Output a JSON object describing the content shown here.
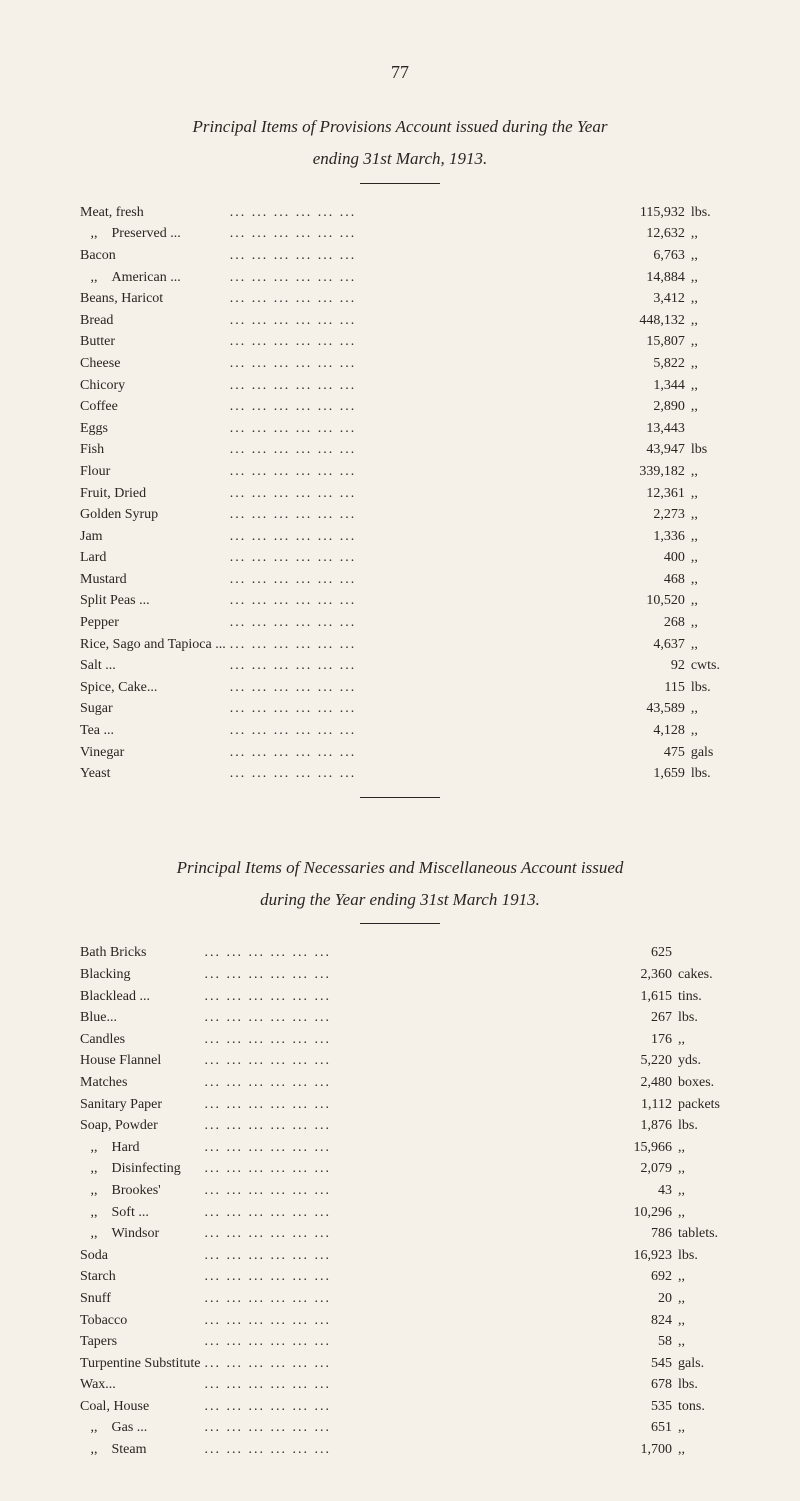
{
  "pageNumber": "77",
  "section1": {
    "titleLine1": "Principal Items of Provisions Account issued during the Year",
    "titleLine2": "ending 31st March, 1913.",
    "rows": [
      {
        "label": "Meat, fresh",
        "value": "115,932",
        "unit": "lbs."
      },
      {
        "label": "   ,,    Preserved ...",
        "value": "12,632",
        "unit": ",,"
      },
      {
        "label": "Bacon",
        "value": "6,763",
        "unit": ",,"
      },
      {
        "label": "   ,,    American ...",
        "value": "14,884",
        "unit": ",,"
      },
      {
        "label": "Beans, Haricot",
        "value": "3,412",
        "unit": ",,"
      },
      {
        "label": "Bread",
        "value": "448,132",
        "unit": ",,"
      },
      {
        "label": "Butter",
        "value": "15,807",
        "unit": ",,"
      },
      {
        "label": "Cheese",
        "value": "5,822",
        "unit": ",,"
      },
      {
        "label": "Chicory",
        "value": "1,344",
        "unit": ",,"
      },
      {
        "label": "Coffee",
        "value": "2,890",
        "unit": ",,"
      },
      {
        "label": "Eggs",
        "value": "13,443",
        "unit": ""
      },
      {
        "label": "Fish",
        "value": "43,947",
        "unit": "lbs"
      },
      {
        "label": "Flour",
        "value": "339,182",
        "unit": ",,"
      },
      {
        "label": "Fruit, Dried",
        "value": "12,361",
        "unit": ",,"
      },
      {
        "label": "Golden Syrup",
        "value": "2,273",
        "unit": ",,"
      },
      {
        "label": "Jam",
        "value": "1,336",
        "unit": ",,"
      },
      {
        "label": "Lard",
        "value": "400",
        "unit": ",,"
      },
      {
        "label": "Mustard",
        "value": "468",
        "unit": ",,"
      },
      {
        "label": "Split Peas ...",
        "value": "10,520",
        "unit": ",,"
      },
      {
        "label": "Pepper",
        "value": "268",
        "unit": ",,"
      },
      {
        "label": "Rice, Sago and Tapioca ...",
        "value": "4,637",
        "unit": ",,"
      },
      {
        "label": "Salt ...",
        "value": "92",
        "unit": "cwts."
      },
      {
        "label": "Spice, Cake...",
        "value": "115",
        "unit": "lbs."
      },
      {
        "label": "Sugar",
        "value": "43,589",
        "unit": ",,"
      },
      {
        "label": "Tea ...",
        "value": "4,128",
        "unit": ",,"
      },
      {
        "label": "Vinegar",
        "value": "475",
        "unit": "gals"
      },
      {
        "label": "Yeast",
        "value": "1,659",
        "unit": "lbs."
      }
    ]
  },
  "section2": {
    "titleLine1": "Principal Items of Necessaries and Miscellaneous Account issued",
    "titleLine2": "during the Year ending 31st March 1913.",
    "rows": [
      {
        "label": "Bath Bricks",
        "value": "625",
        "unit": ""
      },
      {
        "label": "Blacking",
        "value": "2,360",
        "unit": "cakes."
      },
      {
        "label": "Blacklead ...",
        "value": "1,615",
        "unit": "tins."
      },
      {
        "label": "Blue...",
        "value": "267",
        "unit": "lbs."
      },
      {
        "label": "Candles",
        "value": "176",
        "unit": ",,"
      },
      {
        "label": "House Flannel",
        "value": "5,220",
        "unit": "yds."
      },
      {
        "label": "Matches",
        "value": "2,480",
        "unit": "boxes."
      },
      {
        "label": "Sanitary Paper",
        "value": "1,112",
        "unit": "packets"
      },
      {
        "label": "Soap, Powder",
        "value": "1,876",
        "unit": "lbs."
      },
      {
        "label": "   ,,    Hard",
        "value": "15,966",
        "unit": ",,"
      },
      {
        "label": "   ,,    Disinfecting",
        "value": "2,079",
        "unit": ",,"
      },
      {
        "label": "   ,,    Brookes'",
        "value": "43",
        "unit": ",,"
      },
      {
        "label": "   ,,    Soft ...",
        "value": "10,296",
        "unit": ",,"
      },
      {
        "label": "   ,,    Windsor",
        "value": "786",
        "unit": "tablets."
      },
      {
        "label": "Soda",
        "value": "16,923",
        "unit": "lbs."
      },
      {
        "label": "Starch",
        "value": "692",
        "unit": ",,"
      },
      {
        "label": "Snuff",
        "value": "20",
        "unit": ",,"
      },
      {
        "label": "Tobacco",
        "value": "824",
        "unit": ",,"
      },
      {
        "label": "Tapers",
        "value": "58",
        "unit": ",,"
      },
      {
        "label": "Turpentine Substitute",
        "value": "545",
        "unit": "gals."
      },
      {
        "label": "Wax...",
        "value": "678",
        "unit": "lbs."
      },
      {
        "label": "Coal, House",
        "value": "535",
        "unit": "tons."
      },
      {
        "label": "   ,,    Gas ...",
        "value": "651",
        "unit": ",,"
      },
      {
        "label": "   ,,    Steam",
        "value": "1,700",
        "unit": ",,"
      }
    ]
  }
}
